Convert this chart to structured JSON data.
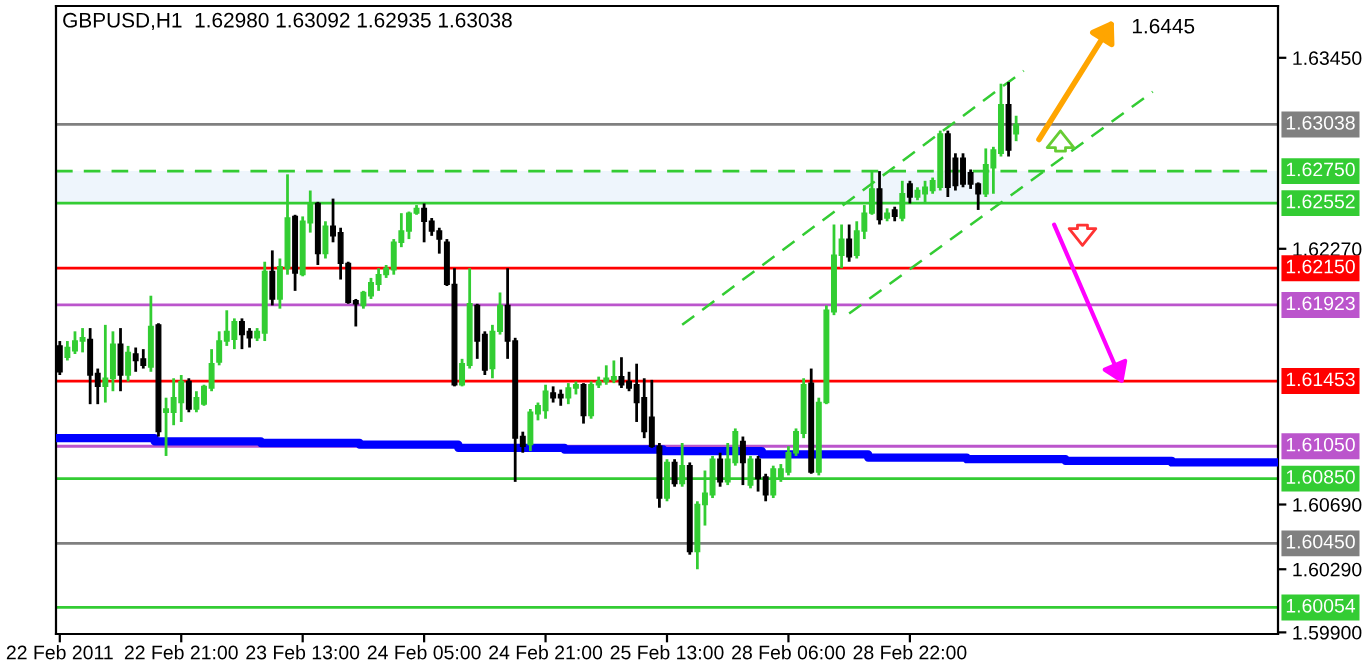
{
  "chart_data": {
    "type": "candlestick",
    "title": "GBPUSD,H1  1.62980 1.63092 1.62935 1.63038",
    "categories": [
      "22 Feb 2011",
      null,
      null,
      null,
      null,
      null,
      null,
      null,
      null,
      null,
      null,
      null,
      null,
      null,
      null,
      null,
      "22 Feb 21:00",
      null,
      null,
      null,
      null,
      null,
      null,
      null,
      null,
      null,
      null,
      null,
      null,
      null,
      null,
      null,
      "23 Feb 13:00",
      null,
      null,
      null,
      null,
      null,
      null,
      null,
      null,
      null,
      null,
      null,
      null,
      null,
      null,
      null,
      "24 Feb 05:00",
      null,
      null,
      null,
      null,
      null,
      null,
      null,
      null,
      null,
      null,
      null,
      null,
      null,
      null,
      null,
      "24 Feb 21:00",
      null,
      null,
      null,
      null,
      null,
      null,
      null,
      null,
      null,
      null,
      null,
      null,
      null,
      null,
      null,
      "25 Feb 13:00",
      null,
      null,
      null,
      null,
      null,
      null,
      null,
      null,
      null,
      null,
      null,
      null,
      null,
      null,
      null,
      "28 Feb 06:00",
      null,
      null,
      null,
      null,
      null,
      null,
      null,
      null,
      null,
      null,
      null,
      null,
      null,
      null,
      null,
      "28 Feb 22:00",
      null,
      null,
      null,
      null,
      null,
      null,
      null,
      null,
      null,
      null,
      null,
      null,
      null,
      null,
      null,
      null,
      null,
      null,
      null,
      null,
      null,
      null,
      null,
      null,
      null,
      null,
      null,
      null,
      null,
      null,
      null,
      null,
      null,
      null,
      null,
      null,
      null,
      null,
      null,
      null,
      null,
      null,
      null,
      null,
      null,
      null,
      null,
      null
    ],
    "ohlc": [
      [
        1.6167,
        1.617,
        1.6149,
        1.6151
      ],
      [
        1.616,
        1.617,
        1.6158,
        1.6166
      ],
      [
        1.6164,
        1.6176,
        1.6162,
        1.617
      ],
      [
        1.617,
        1.6178,
        1.6163,
        1.6172
      ],
      [
        1.6171,
        1.6178,
        1.6131,
        1.6149
      ],
      [
        1.615,
        1.6153,
        1.6131,
        1.6142
      ],
      [
        1.6142,
        1.618,
        1.6132,
        1.6147
      ],
      [
        1.6147,
        1.6176,
        1.6139,
        1.6168
      ],
      [
        1.6168,
        1.6178,
        1.6139,
        1.6149
      ],
      [
        1.6149,
        1.6167,
        1.6145,
        1.6163
      ],
      [
        1.6162,
        1.6166,
        1.6151,
        1.6158
      ],
      [
        1.6159,
        1.6165,
        1.6153,
        1.6155
      ],
      [
        1.6154,
        1.6198,
        1.6151,
        1.6179
      ],
      [
        1.618,
        1.6181,
        1.6111,
        1.6114
      ],
      [
        1.6126,
        1.6135,
        1.6099,
        1.6128
      ],
      [
        1.6126,
        1.6147,
        1.6118,
        1.6135
      ],
      [
        1.6132,
        1.6149,
        1.612,
        1.6145
      ],
      [
        1.6145,
        1.6147,
        1.6126,
        1.6128
      ],
      [
        1.6128,
        1.6139,
        1.6126,
        1.6135
      ],
      [
        1.6131,
        1.6143,
        1.613,
        1.6142
      ],
      [
        1.6141,
        1.6165,
        1.6139,
        1.6156
      ],
      [
        1.6157,
        1.6176,
        1.6155,
        1.617
      ],
      [
        1.617,
        1.6189,
        1.6167,
        1.6176
      ],
      [
        1.6171,
        1.6184,
        1.6165,
        1.6182
      ],
      [
        1.6182,
        1.6184,
        1.6165,
        1.6174
      ],
      [
        1.6176,
        1.6178,
        1.6166,
        1.6172
      ],
      [
        1.6172,
        1.6178,
        1.617,
        1.6176
      ],
      [
        1.6175,
        1.6219,
        1.617,
        1.6213
      ],
      [
        1.6213,
        1.6226,
        1.6192,
        1.6196
      ],
      [
        1.6196,
        1.6221,
        1.619,
        1.6216
      ],
      [
        1.6215,
        1.6273,
        1.6211,
        1.6246
      ],
      [
        1.6247,
        1.6248,
        1.6201,
        1.6212
      ],
      [
        1.6211,
        1.6247,
        1.621,
        1.6244
      ],
      [
        1.6243,
        1.6263,
        1.6237,
        1.6255
      ],
      [
        1.6255,
        1.6256,
        1.6217,
        1.6224
      ],
      [
        1.6224,
        1.6244,
        1.6221,
        1.6241
      ],
      [
        1.6241,
        1.6258,
        1.6231,
        1.6235
      ],
      [
        1.6237,
        1.624,
        1.6208,
        1.6218
      ],
      [
        1.6218,
        1.6219,
        1.6193,
        1.6194
      ],
      [
        1.6195,
        1.6196,
        1.6179,
        1.6193
      ],
      [
        1.6192,
        1.6201,
        1.619,
        1.62
      ],
      [
        1.6198,
        1.6209,
        1.6196,
        1.6206
      ],
      [
        1.6205,
        1.6215,
        1.6201,
        1.6211
      ],
      [
        1.6211,
        1.6217,
        1.6209,
        1.6215
      ],
      [
        1.6214,
        1.6233,
        1.6211,
        1.6231
      ],
      [
        1.6231,
        1.6249,
        1.6228,
        1.6238
      ],
      [
        1.6238,
        1.625,
        1.6233,
        1.6249
      ],
      [
        1.6249,
        1.6254,
        1.6248,
        1.6252
      ],
      [
        1.6252,
        1.6255,
        1.6231,
        1.6244
      ],
      [
        1.6244,
        1.6246,
        1.6235,
        1.6238
      ],
      [
        1.6238,
        1.624,
        1.6224,
        1.6233
      ],
      [
        1.6231,
        1.6233,
        1.6204,
        1.6205
      ],
      [
        1.6205,
        1.6215,
        1.6142,
        1.6143
      ],
      [
        1.6143,
        1.6159,
        1.6142,
        1.6156
      ],
      [
        1.6155,
        1.6215,
        1.6153,
        1.6193
      ],
      [
        1.6192,
        1.6193,
        1.6159,
        1.617
      ],
      [
        1.6174,
        1.6176,
        1.6149,
        1.6152
      ],
      [
        1.6153,
        1.618,
        1.6147,
        1.6176
      ],
      [
        1.6176,
        1.62,
        1.6174,
        1.6192
      ],
      [
        1.6192,
        1.6215,
        1.6159,
        1.617
      ],
      [
        1.617,
        1.6172,
        1.6083,
        1.611
      ],
      [
        1.6111,
        1.6114,
        1.6101,
        1.6105
      ],
      [
        1.6106,
        1.6128,
        1.6102,
        1.6126
      ],
      [
        1.6125,
        1.6132,
        1.6121,
        1.613
      ],
      [
        1.6127,
        1.6143,
        1.6122,
        1.6139
      ],
      [
        1.6138,
        1.6142,
        1.6132,
        1.6135
      ],
      [
        1.6137,
        1.614,
        1.613,
        1.6135
      ],
      [
        1.6135,
        1.6144,
        1.6131,
        1.6141
      ],
      [
        1.6141,
        1.6145,
        1.6137,
        1.6143
      ],
      [
        1.6143,
        1.6144,
        1.6119,
        1.6124
      ],
      [
        1.6124,
        1.6145,
        1.6122,
        1.6143
      ],
      [
        1.6143,
        1.6148,
        1.6141,
        1.6145
      ],
      [
        1.6145,
        1.6155,
        1.6143,
        1.6147
      ],
      [
        1.6146,
        1.6158,
        1.6144,
        1.6148
      ],
      [
        1.6148,
        1.616,
        1.6141,
        1.6143
      ],
      [
        1.6145,
        1.6151,
        1.6139,
        1.6141
      ],
      [
        1.6143,
        1.6156,
        1.612,
        1.6132
      ],
      [
        1.6135,
        1.6147,
        1.611,
        1.6114
      ],
      [
        1.6123,
        1.6146,
        1.6104,
        1.6105
      ],
      [
        1.6105,
        1.6107,
        1.6067,
        1.6073
      ],
      [
        1.6073,
        1.6097,
        1.6071,
        1.6095
      ],
      [
        1.6095,
        1.6097,
        1.608,
        1.6082
      ],
      [
        1.6082,
        1.6107,
        1.608,
        1.6093
      ],
      [
        1.6093,
        1.6095,
        1.6038,
        1.604
      ],
      [
        1.604,
        1.6071,
        1.6029,
        1.6069
      ],
      [
        1.6069,
        1.609,
        1.6056,
        1.6076
      ],
      [
        1.6075,
        1.6099,
        1.6073,
        1.6097
      ],
      [
        1.6097,
        1.6101,
        1.608,
        1.6083
      ],
      [
        1.6083,
        1.6107,
        1.6081,
        1.6097
      ],
      [
        1.6095,
        1.6116,
        1.6093,
        1.6114
      ],
      [
        1.6108,
        1.6111,
        1.6081,
        1.6095
      ],
      [
        1.6081,
        1.6099,
        1.6079,
        1.6097
      ],
      [
        1.6097,
        1.6099,
        1.6077,
        1.6085
      ],
      [
        1.6086,
        1.6088,
        1.6071,
        1.6075
      ],
      [
        1.6075,
        1.6093,
        1.6073,
        1.6091
      ],
      [
        1.6085,
        1.6094,
        1.6083,
        1.6091
      ],
      [
        1.6089,
        1.6105,
        1.6087,
        1.6101
      ],
      [
        1.6101,
        1.6116,
        1.6099,
        1.6114
      ],
      [
        1.6113,
        1.6147,
        1.611,
        1.6143
      ],
      [
        1.6144,
        1.6153,
        1.6088,
        1.6089
      ],
      [
        1.6089,
        1.6135,
        1.6087,
        1.6132
      ],
      [
        1.6132,
        1.6192,
        1.6131,
        1.6189
      ],
      [
        1.6188,
        1.6242,
        1.6186,
        1.6223
      ],
      [
        1.6223,
        1.6242,
        1.6215,
        1.6233
      ],
      [
        1.6233,
        1.6242,
        1.6219,
        1.6222
      ],
      [
        1.6223,
        1.6244,
        1.6221,
        1.6238
      ],
      [
        1.6238,
        1.6254,
        1.6233,
        1.6249
      ],
      [
        1.6249,
        1.6275,
        1.6248,
        1.6264
      ],
      [
        1.6264,
        1.6275,
        1.6242,
        1.6245
      ],
      [
        1.6246,
        1.6252,
        1.6244,
        1.6249
      ],
      [
        1.6251,
        1.6253,
        1.6244,
        1.6247
      ],
      [
        1.6246,
        1.6269,
        1.6244,
        1.6261
      ],
      [
        1.6267,
        1.6269,
        1.6255,
        1.6259
      ],
      [
        1.6259,
        1.6265,
        1.6257,
        1.6263
      ],
      [
        1.6261,
        1.6269,
        1.6255,
        1.6265
      ],
      [
        1.6263,
        1.6271,
        1.6261,
        1.6269
      ],
      [
        1.6265,
        1.63,
        1.6263,
        1.6298
      ],
      [
        1.6298,
        1.63,
        1.6259,
        1.6265
      ],
      [
        1.6283,
        1.6286,
        1.6263,
        1.6266
      ],
      [
        1.6283,
        1.6286,
        1.6265,
        1.6267
      ],
      [
        1.6274,
        1.6276,
        1.6264,
        1.6267
      ],
      [
        1.6267,
        1.6268,
        1.6251,
        1.6261
      ],
      [
        1.6261,
        1.6289,
        1.6259,
        1.6279
      ],
      [
        1.6277,
        1.629,
        1.6261,
        1.6288
      ],
      [
        1.6286,
        1.6329,
        1.6284,
        1.6316
      ],
      [
        1.6316,
        1.633,
        1.6284,
        1.6288
      ],
      [
        1.6298,
        1.63092,
        1.62935,
        1.63038
      ],
      null,
      null,
      null,
      null,
      null,
      null,
      null,
      null,
      null,
      null,
      null,
      null,
      null,
      null,
      null,
      null,
      null,
      null,
      null,
      null,
      null,
      null,
      null,
      null,
      null,
      null,
      null,
      null,
      null,
      null,
      null,
      null,
      null,
      null
    ],
    "series": [
      {
        "type": "step",
        "color": "#0000ff",
        "values": [
          1.611,
          1.611,
          1.611,
          1.611,
          1.611,
          1.611,
          1.611,
          1.611,
          1.611,
          1.611,
          1.611,
          1.611,
          1.611,
          1.6108,
          1.6108,
          1.6108,
          1.6108,
          1.6108,
          1.6108,
          1.6108,
          1.6108,
          1.6108,
          1.6108,
          1.6108,
          1.6108,
          1.6108,
          1.6108,
          1.6107,
          1.6107,
          1.6107,
          1.6107,
          1.6107,
          1.6107,
          1.6107,
          1.6107,
          1.6107,
          1.6107,
          1.6107,
          1.6107,
          1.6107,
          1.6106,
          1.6106,
          1.6106,
          1.6106,
          1.6106,
          1.6106,
          1.6106,
          1.6106,
          1.6106,
          1.6106,
          1.6106,
          1.6106,
          1.6106,
          1.6104,
          1.6104,
          1.6104,
          1.6104,
          1.6104,
          1.6104,
          1.6104,
          1.6104,
          1.6104,
          1.6104,
          1.6104,
          1.6104,
          1.6104,
          1.6104,
          1.6103,
          1.6103,
          1.6103,
          1.6103,
          1.6103,
          1.6103,
          1.6103,
          1.6103,
          1.6103,
          1.6103,
          1.6103,
          1.6103,
          1.6103,
          1.6102,
          1.6102,
          1.6102,
          1.6102,
          1.6102,
          1.6102,
          1.6102,
          1.6102,
          1.6102,
          1.6102,
          1.6102,
          1.6102,
          1.6102,
          1.61,
          1.61,
          1.61,
          1.61,
          1.61,
          1.61,
          1.61,
          1.61,
          1.61,
          1.61,
          1.61,
          1.61,
          1.61,
          1.61,
          1.6098,
          1.6098,
          1.6098,
          1.6098,
          1.6098,
          1.6098,
          1.6098,
          1.6098,
          1.6098,
          1.6098,
          1.6098,
          1.6098,
          1.6098,
          1.6097,
          1.6097,
          1.6097,
          1.6097,
          1.6097,
          1.6097,
          1.6097,
          1.6097,
          1.6097,
          1.6097,
          1.6097,
          1.6097,
          1.6097,
          1.6096,
          1.6096,
          1.6096,
          1.6096,
          1.6096,
          1.6096,
          1.6096,
          1.6096,
          1.6096,
          1.6096,
          1.6096,
          1.6096,
          1.6096,
          1.6096,
          1.6095,
          1.6095,
          1.6095,
          1.6095,
          1.6095,
          1.6095,
          1.6095,
          1.6095,
          1.6095,
          1.6095,
          1.6095,
          1.6095,
          1.6095,
          1.6095
        ]
      },
      {
        "type": "line",
        "color": "#33cc33",
        "line_style": "dashed",
        "values": [
          null,
          null,
          null,
          null,
          null,
          null,
          null,
          null,
          null,
          null,
          null,
          null,
          null,
          null,
          null,
          null,
          null,
          null,
          null,
          null,
          null,
          null,
          null,
          null,
          null,
          null,
          null,
          null,
          null,
          null,
          null,
          null,
          null,
          null,
          null,
          null,
          null,
          null,
          null,
          null,
          null,
          null,
          null,
          null,
          null,
          null,
          null,
          null,
          null,
          null,
          null,
          null,
          null,
          null,
          null,
          null,
          null,
          null,
          null,
          null,
          null,
          null,
          null,
          null,
          null,
          null,
          null,
          null,
          null,
          null,
          null,
          null,
          null,
          null,
          null,
          null,
          null,
          null,
          null,
          null,
          null,
          null,
          1.618,
          null,
          null,
          null,
          null,
          null,
          null,
          null,
          null,
          null,
          null,
          null,
          null,
          null,
          null,
          null,
          null,
          null,
          null,
          null,
          null,
          null,
          null,
          null,
          null,
          null,
          null,
          null,
          null,
          null,
          null,
          null,
          null,
          null,
          null,
          null,
          null,
          null,
          null,
          null,
          null,
          null,
          null,
          null,
          null,
          1.6337,
          null,
          null,
          null,
          null,
          null,
          null,
          null,
          null,
          null,
          null,
          null,
          null,
          null,
          null,
          null,
          null,
          null,
          null,
          null,
          null,
          null,
          null,
          null,
          null,
          null,
          null,
          null,
          null,
          null,
          null,
          null,
          null,
          null
        ]
      },
      {
        "type": "line",
        "color": "#33cc33",
        "line_style": "dashed",
        "values": [
          null,
          null,
          null,
          null,
          null,
          null,
          null,
          null,
          null,
          null,
          null,
          null,
          null,
          null,
          null,
          null,
          null,
          null,
          null,
          null,
          null,
          null,
          null,
          null,
          null,
          null,
          null,
          null,
          null,
          null,
          null,
          null,
          null,
          null,
          null,
          null,
          null,
          null,
          null,
          null,
          null,
          null,
          null,
          null,
          null,
          null,
          null,
          null,
          null,
          null,
          null,
          null,
          null,
          null,
          null,
          null,
          null,
          null,
          null,
          null,
          null,
          null,
          null,
          null,
          null,
          null,
          null,
          null,
          null,
          null,
          null,
          null,
          null,
          null,
          null,
          null,
          null,
          null,
          null,
          null,
          null,
          null,
          null,
          null,
          null,
          null,
          null,
          null,
          null,
          null,
          null,
          null,
          null,
          null,
          null,
          null,
          null,
          null,
          null,
          null,
          null,
          null,
          null,
          null,
          1.6187,
          null,
          null,
          null,
          null,
          null,
          null,
          null,
          null,
          null,
          null,
          null,
          null,
          null,
          null,
          null,
          null,
          null,
          null,
          null,
          null,
          null,
          null,
          null,
          null,
          null,
          null,
          null,
          null,
          null,
          null,
          null,
          null,
          null,
          null,
          null,
          null,
          null,
          null,
          null,
          1.6324,
          null,
          null,
          null,
          null,
          null,
          null,
          null,
          null,
          null,
          null,
          null,
          null,
          null,
          null,
          null,
          null
        ]
      }
    ],
    "ref_lines": [
      {
        "axis": "y",
        "value": 1.63038,
        "label": "1.63038",
        "color": "#808080"
      },
      {
        "axis": "y",
        "value": 1.6275,
        "label": "1.62750",
        "color": "#33cc33",
        "line_style": "dashed"
      },
      {
        "axis": "y",
        "value": 1.62552,
        "label": "1.62552",
        "color": "#33cc33"
      },
      {
        "axis": "y",
        "value": 1.6215,
        "label": "1.62150",
        "color": "#ff0000"
      },
      {
        "axis": "y",
        "value": 1.61923,
        "label": "1.61923",
        "color": "#bb55cc"
      },
      {
        "axis": "y",
        "value": 1.61453,
        "label": "1.61453",
        "color": "#ff0000"
      },
      {
        "axis": "y",
        "value": 1.6105,
        "label": "1.61050",
        "color": "#bb55cc"
      },
      {
        "axis": "y",
        "value": 1.6085,
        "label": "1.60850",
        "color": "#33cc33"
      },
      {
        "axis": "y",
        "value": 1.6045,
        "label": "1.60450",
        "color": "#808080"
      },
      {
        "axis": "y",
        "value": 1.60054,
        "label": "1.60054",
        "color": "#33cc33"
      }
    ],
    "bands": [
      {
        "axis": "y",
        "from": 1.62552,
        "to": 1.6275,
        "color": "#eef5fc"
      }
    ],
    "annotations": [
      "1.6445"
    ],
    "ylim": [
      1.5989,
      1.6377
    ],
    "yticks": [
      {
        "value": 1.599,
        "label": "1.59900"
      },
      {
        "value": 1.6029,
        "label": "1.60290"
      },
      {
        "value": 1.6069,
        "label": "1.60690"
      },
      {
        "value": 1.6227,
        "label": "1.62270"
      },
      {
        "value": 1.6345,
        "label": "1.63450"
      }
    ]
  }
}
